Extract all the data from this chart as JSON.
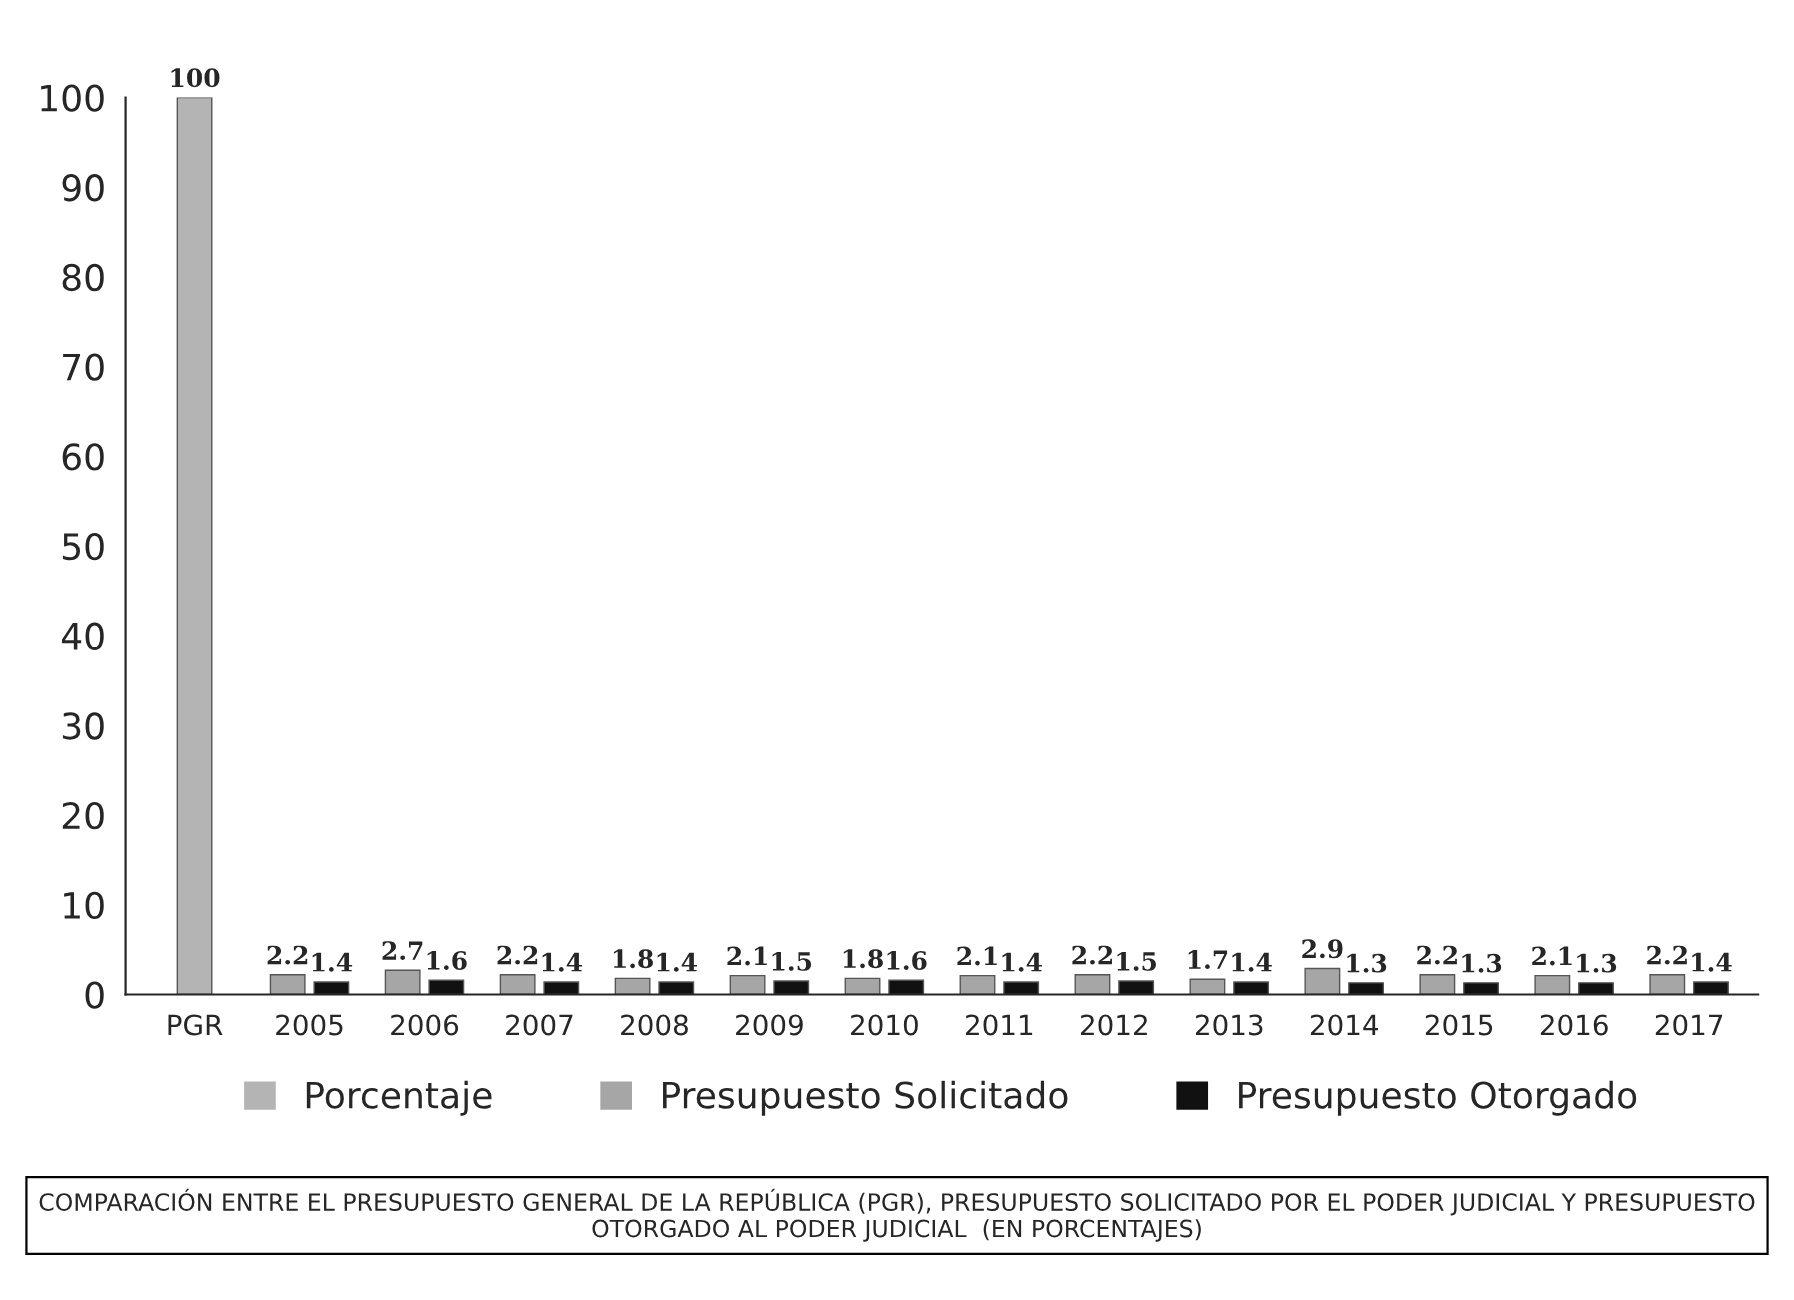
{
  "chart_data": {
    "type": "bar",
    "title": "COMPARACIÓN ENTRE EL PRESUPUESTO GENERAL DE LA REPÚBLICA (PGR), PRESUPUESTO SOLICITADO POR EL PODER JUDICIAL Y PRESUPUESTO OTORGADO AL PODER JUDICIAL  (EN PORCENTAJES)",
    "categories": [
      "PGR",
      "2005",
      "2006",
      "2007",
      "2008",
      "2009",
      "2010",
      "2011",
      "2012",
      "2013",
      "2014",
      "2015",
      "2016",
      "2017"
    ],
    "series": [
      {
        "name": "Porcentaje",
        "color": "#b4b4b4",
        "values": [
          100,
          null,
          null,
          null,
          null,
          null,
          null,
          null,
          null,
          null,
          null,
          null,
          null,
          null
        ]
      },
      {
        "name": "Presupuesto Solicitado",
        "color": "#a6a6a6",
        "values": [
          null,
          2.2,
          2.7,
          2.2,
          1.8,
          2.1,
          1.8,
          2.1,
          2.2,
          1.7,
          2.9,
          2.2,
          2.1,
          2.2
        ]
      },
      {
        "name": "Presupuesto Otorgado",
        "color": "#111111",
        "values": [
          null,
          1.4,
          1.6,
          1.4,
          1.4,
          1.5,
          1.6,
          1.4,
          1.5,
          1.4,
          1.3,
          1.3,
          1.3,
          1.4
        ]
      }
    ],
    "ylim": [
      0,
      100
    ],
    "yticks": [
      0,
      10,
      20,
      30,
      40,
      50,
      60,
      70,
      80,
      90,
      100
    ],
    "data_labels": true,
    "legend": "bottom",
    "grid": false
  }
}
